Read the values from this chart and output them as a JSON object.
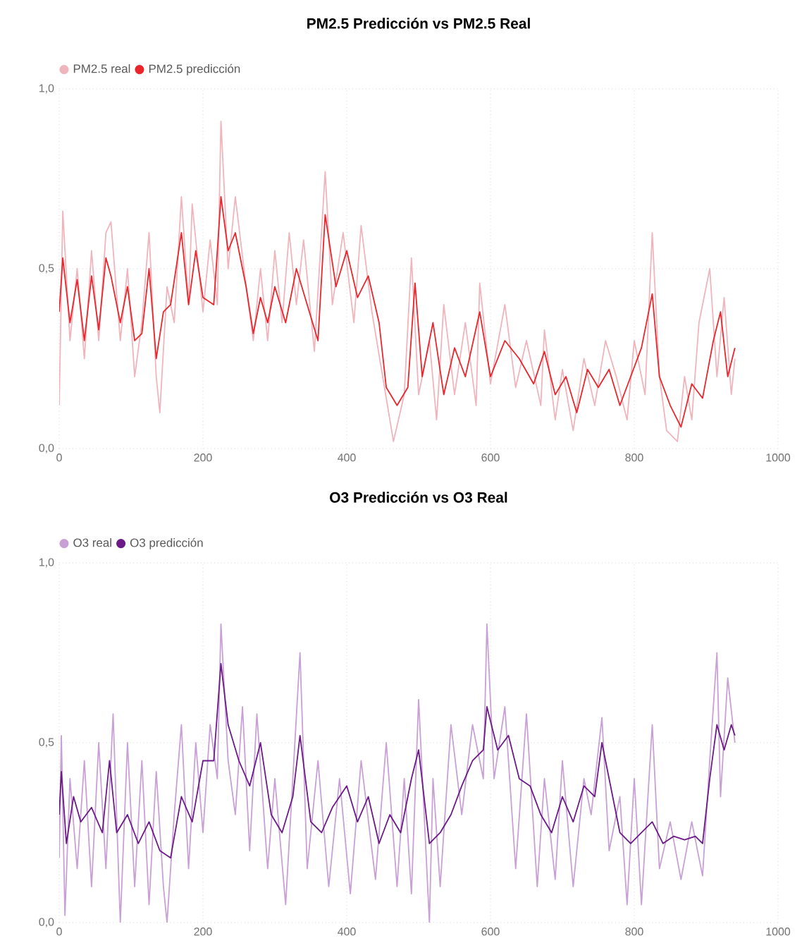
{
  "chart_data": [
    {
      "type": "line",
      "title": "PM2.5 Predicción vs PM2.5 Real",
      "legend": "top left",
      "grid": true,
      "xlim": [
        0,
        1000
      ],
      "ylim": [
        0,
        1
      ],
      "xticks": [
        0,
        200,
        400,
        600,
        800,
        1000
      ],
      "yticks": [
        {
          "value": 0,
          "label": "0,0"
        },
        {
          "value": 0.5,
          "label": "0,5"
        },
        {
          "value": 1,
          "label": "1,0"
        }
      ],
      "series": [
        {
          "name": "PM2.5 real",
          "color": "#f0b4bd",
          "x": [
            0,
            5,
            15,
            25,
            35,
            45,
            55,
            65,
            72,
            85,
            95,
            105,
            115,
            125,
            135,
            140,
            150,
            160,
            170,
            180,
            185,
            200,
            210,
            220,
            225,
            235,
            245,
            260,
            270,
            280,
            290,
            300,
            310,
            320,
            330,
            340,
            355,
            370,
            380,
            395,
            410,
            420,
            435,
            450,
            465,
            480,
            490,
            500,
            515,
            525,
            535,
            550,
            565,
            580,
            585,
            600,
            620,
            635,
            650,
            670,
            675,
            690,
            700,
            715,
            730,
            745,
            760,
            775,
            790,
            800,
            815,
            825,
            835,
            845,
            860,
            870,
            880,
            890,
            905,
            915,
            925,
            935,
            940
          ],
          "values": [
            0.12,
            0.66,
            0.3,
            0.5,
            0.25,
            0.55,
            0.3,
            0.6,
            0.63,
            0.3,
            0.5,
            0.2,
            0.35,
            0.6,
            0.2,
            0.1,
            0.45,
            0.35,
            0.7,
            0.4,
            0.68,
            0.38,
            0.58,
            0.4,
            0.91,
            0.5,
            0.7,
            0.45,
            0.3,
            0.5,
            0.3,
            0.55,
            0.35,
            0.6,
            0.4,
            0.58,
            0.27,
            0.77,
            0.4,
            0.6,
            0.35,
            0.62,
            0.38,
            0.2,
            0.02,
            0.15,
            0.53,
            0.15,
            0.3,
            0.08,
            0.4,
            0.15,
            0.35,
            0.12,
            0.46,
            0.18,
            0.4,
            0.17,
            0.3,
            0.12,
            0.33,
            0.08,
            0.22,
            0.05,
            0.25,
            0.12,
            0.3,
            0.2,
            0.08,
            0.3,
            0.15,
            0.6,
            0.2,
            0.05,
            0.02,
            0.2,
            0.08,
            0.35,
            0.5,
            0.2,
            0.42,
            0.15,
            0.25
          ]
        },
        {
          "name": "PM2.5 predicción",
          "color": "#e8262c",
          "x": [
            0,
            5,
            15,
            25,
            35,
            45,
            55,
            65,
            72,
            85,
            95,
            105,
            115,
            125,
            135,
            145,
            155,
            170,
            180,
            190,
            200,
            215,
            225,
            235,
            245,
            260,
            270,
            280,
            290,
            300,
            315,
            330,
            345,
            360,
            370,
            385,
            400,
            415,
            430,
            445,
            455,
            470,
            485,
            495,
            505,
            520,
            535,
            550,
            565,
            585,
            600,
            620,
            640,
            660,
            675,
            690,
            705,
            720,
            735,
            750,
            765,
            780,
            795,
            810,
            825,
            835,
            850,
            865,
            880,
            895,
            910,
            920,
            930,
            940
          ],
          "values": [
            0.38,
            0.53,
            0.35,
            0.47,
            0.3,
            0.48,
            0.33,
            0.53,
            0.48,
            0.35,
            0.45,
            0.3,
            0.32,
            0.5,
            0.25,
            0.38,
            0.4,
            0.6,
            0.4,
            0.55,
            0.42,
            0.4,
            0.7,
            0.55,
            0.6,
            0.45,
            0.32,
            0.42,
            0.35,
            0.45,
            0.35,
            0.5,
            0.4,
            0.3,
            0.65,
            0.45,
            0.55,
            0.42,
            0.48,
            0.35,
            0.17,
            0.12,
            0.17,
            0.46,
            0.2,
            0.35,
            0.15,
            0.28,
            0.2,
            0.38,
            0.2,
            0.3,
            0.25,
            0.18,
            0.27,
            0.15,
            0.2,
            0.1,
            0.22,
            0.17,
            0.22,
            0.12,
            0.2,
            0.28,
            0.43,
            0.2,
            0.12,
            0.06,
            0.18,
            0.14,
            0.3,
            0.38,
            0.2,
            0.28
          ]
        }
      ]
    },
    {
      "type": "line",
      "title": "O3 Predicción vs O3 Real",
      "legend": "top left",
      "grid": true,
      "xlim": [
        0,
        1000
      ],
      "ylim": [
        0,
        1
      ],
      "xticks": [
        0,
        200,
        400,
        600,
        800,
        1000
      ],
      "yticks": [
        {
          "value": 0,
          "label": "0,0"
        },
        {
          "value": 0.5,
          "label": "0,5"
        },
        {
          "value": 1,
          "label": "1,0"
        }
      ],
      "series": [
        {
          "name": "O3 real",
          "color": "#c9a0d6",
          "x": [
            0,
            3,
            8,
            15,
            25,
            35,
            45,
            55,
            65,
            75,
            85,
            95,
            105,
            115,
            125,
            135,
            145,
            150,
            160,
            170,
            180,
            190,
            200,
            210,
            220,
            225,
            235,
            245,
            255,
            265,
            275,
            290,
            300,
            315,
            335,
            345,
            360,
            375,
            390,
            405,
            420,
            440,
            455,
            470,
            480,
            490,
            500,
            515,
            520,
            530,
            545,
            560,
            575,
            590,
            595,
            605,
            620,
            635,
            650,
            665,
            675,
            690,
            700,
            715,
            730,
            740,
            755,
            765,
            780,
            790,
            800,
            810,
            825,
            835,
            850,
            865,
            880,
            895,
            905,
            915,
            920,
            930,
            940
          ],
          "values": [
            0.18,
            0.52,
            0.02,
            0.4,
            0.15,
            0.45,
            0.1,
            0.5,
            0.15,
            0.58,
            0.0,
            0.5,
            0.1,
            0.45,
            0.05,
            0.42,
            0.1,
            0.0,
            0.3,
            0.55,
            0.15,
            0.5,
            0.25,
            0.55,
            0.4,
            0.83,
            0.45,
            0.3,
            0.6,
            0.2,
            0.58,
            0.15,
            0.4,
            0.05,
            0.75,
            0.15,
            0.45,
            0.1,
            0.4,
            0.08,
            0.45,
            0.12,
            0.5,
            0.1,
            0.4,
            0.08,
            0.62,
            0.0,
            0.4,
            0.1,
            0.55,
            0.3,
            0.55,
            0.4,
            0.83,
            0.4,
            0.6,
            0.15,
            0.58,
            0.1,
            0.4,
            0.12,
            0.45,
            0.1,
            0.4,
            0.3,
            0.57,
            0.2,
            0.35,
            0.05,
            0.4,
            0.05,
            0.55,
            0.15,
            0.28,
            0.12,
            0.28,
            0.13,
            0.45,
            0.75,
            0.35,
            0.68,
            0.5
          ]
        },
        {
          "name": "O3 predicción",
          "color": "#6b1a87",
          "x": [
            0,
            3,
            10,
            20,
            30,
            45,
            60,
            70,
            80,
            95,
            110,
            125,
            140,
            155,
            170,
            185,
            200,
            215,
            225,
            235,
            250,
            265,
            280,
            295,
            310,
            325,
            335,
            350,
            365,
            380,
            400,
            415,
            430,
            445,
            460,
            475,
            490,
            500,
            515,
            530,
            545,
            560,
            575,
            590,
            595,
            610,
            625,
            640,
            655,
            670,
            685,
            700,
            715,
            730,
            745,
            755,
            765,
            780,
            795,
            810,
            825,
            840,
            855,
            870,
            885,
            895,
            905,
            915,
            925,
            935,
            940
          ],
          "values": [
            0.3,
            0.42,
            0.22,
            0.35,
            0.28,
            0.32,
            0.25,
            0.45,
            0.25,
            0.3,
            0.22,
            0.28,
            0.2,
            0.18,
            0.35,
            0.28,
            0.45,
            0.45,
            0.72,
            0.55,
            0.45,
            0.38,
            0.5,
            0.3,
            0.25,
            0.35,
            0.52,
            0.28,
            0.25,
            0.32,
            0.38,
            0.28,
            0.35,
            0.22,
            0.3,
            0.25,
            0.4,
            0.48,
            0.22,
            0.25,
            0.3,
            0.38,
            0.45,
            0.48,
            0.6,
            0.48,
            0.52,
            0.4,
            0.38,
            0.3,
            0.25,
            0.35,
            0.28,
            0.38,
            0.35,
            0.5,
            0.4,
            0.25,
            0.22,
            0.25,
            0.28,
            0.22,
            0.24,
            0.23,
            0.24,
            0.22,
            0.4,
            0.55,
            0.48,
            0.55,
            0.52
          ]
        }
      ]
    }
  ]
}
